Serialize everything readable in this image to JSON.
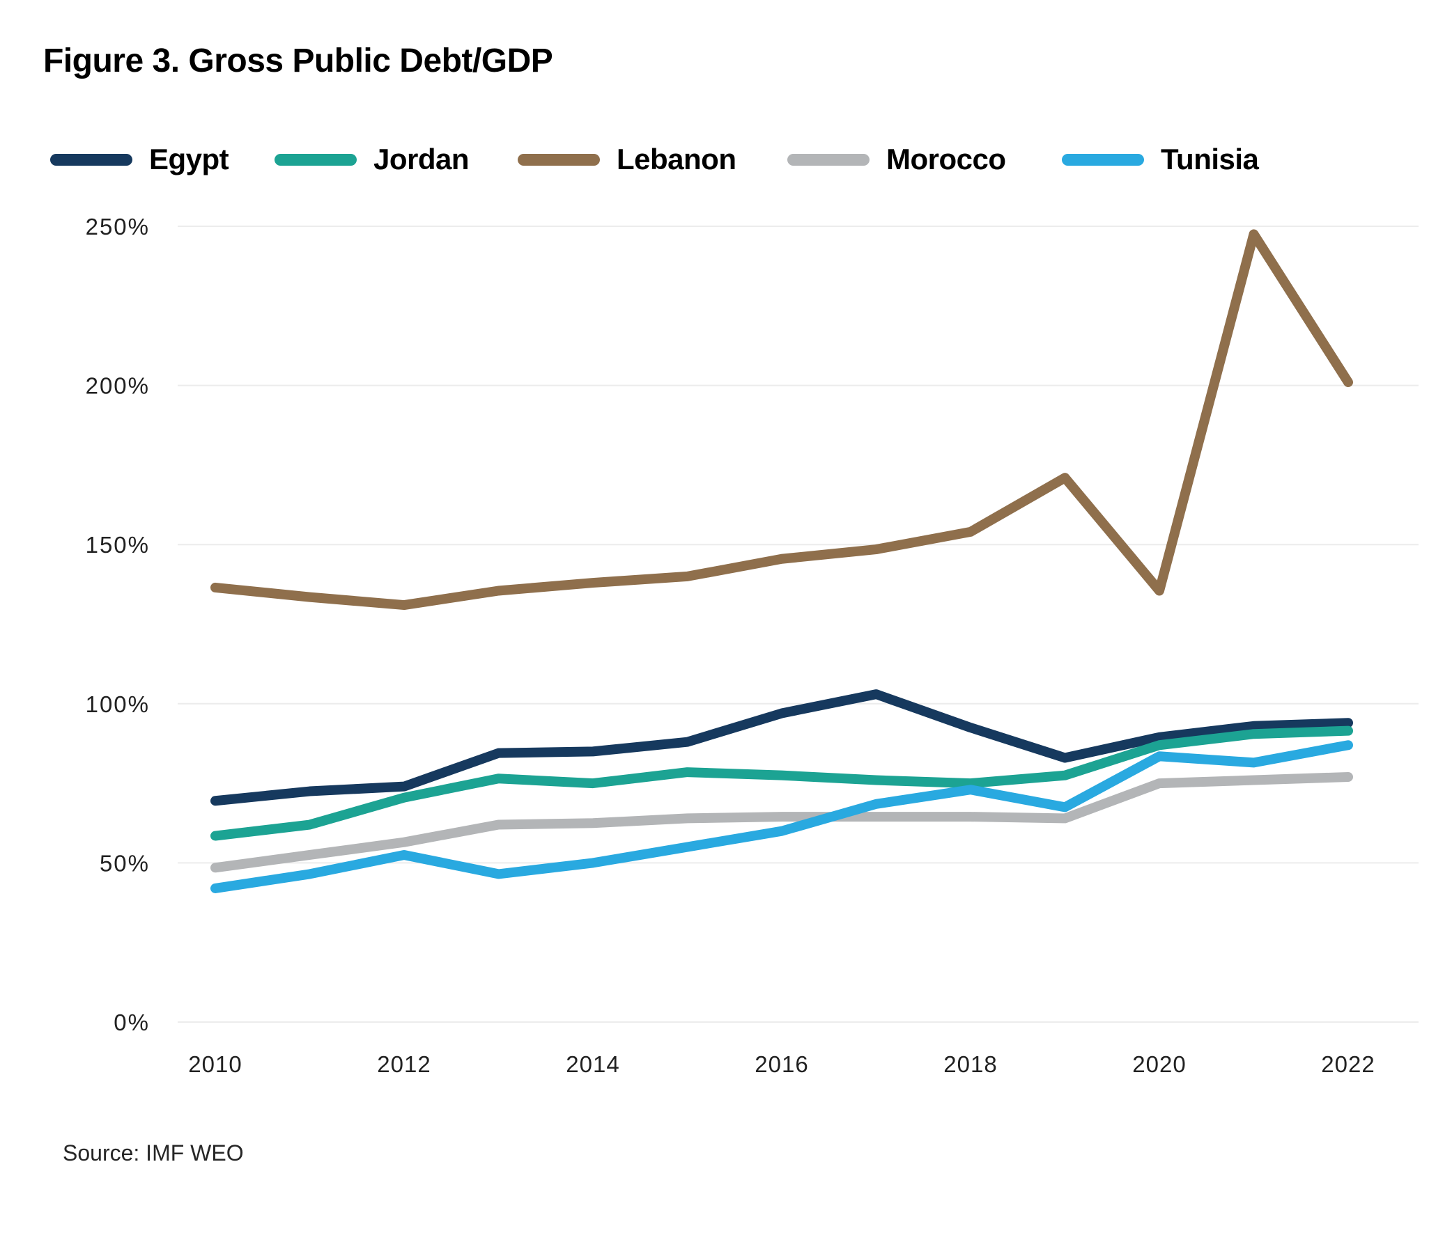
{
  "figure": {
    "title": "Figure 3. Gross Public Debt/GDP",
    "source": "Source: IMF WEO"
  },
  "chart_data": {
    "type": "line",
    "title": "Figure 3. Gross Public Debt/GDP",
    "x": [
      2010,
      2011,
      2012,
      2013,
      2014,
      2015,
      2016,
      2017,
      2018,
      2019,
      2020,
      2021,
      2022
    ],
    "x_tick_labels": [
      "2010",
      "2012",
      "2014",
      "2016",
      "2018",
      "2020",
      "2022"
    ],
    "y_ticks": [
      250,
      200,
      150,
      100,
      50,
      0
    ],
    "y_tick_suffix": "%",
    "ylim": [
      0,
      250
    ],
    "xlabel": "",
    "ylabel": "",
    "grid": "horizontal",
    "legend_position": "top",
    "series": [
      {
        "name": "Egypt",
        "color": "#16395e",
        "values": [
          69.5,
          72.5,
          74,
          84.5,
          85,
          88,
          97,
          103,
          92.5,
          83,
          89.5,
          93,
          94
        ]
      },
      {
        "name": "Jordan",
        "color": "#1ca393",
        "values": [
          58.5,
          62,
          70.5,
          76.5,
          75,
          78.5,
          77.5,
          76,
          75,
          77.5,
          87,
          90.5,
          91.5
        ]
      },
      {
        "name": "Lebanon",
        "color": "#8f6f4c",
        "values": [
          136.5,
          133.5,
          131,
          135.5,
          138,
          140,
          145.5,
          148.5,
          154,
          171,
          135.5,
          247.5,
          201
        ]
      },
      {
        "name": "Morocco",
        "color": "#b3b5b7",
        "values": [
          48.5,
          52.5,
          56.5,
          62,
          62.5,
          64,
          64.5,
          64.5,
          64.5,
          64,
          75,
          76,
          77
        ]
      },
      {
        "name": "Tunisia",
        "color": "#29a9e0",
        "values": [
          42,
          46.5,
          52.5,
          46.5,
          50,
          55,
          60,
          68.5,
          73,
          67.5,
          83.5,
          81.5,
          87
        ]
      }
    ]
  },
  "colors": {
    "background": "#ffffff",
    "gridline": "#ececec",
    "tick_label": "#212121",
    "title": "#000000",
    "source": "#262626"
  }
}
